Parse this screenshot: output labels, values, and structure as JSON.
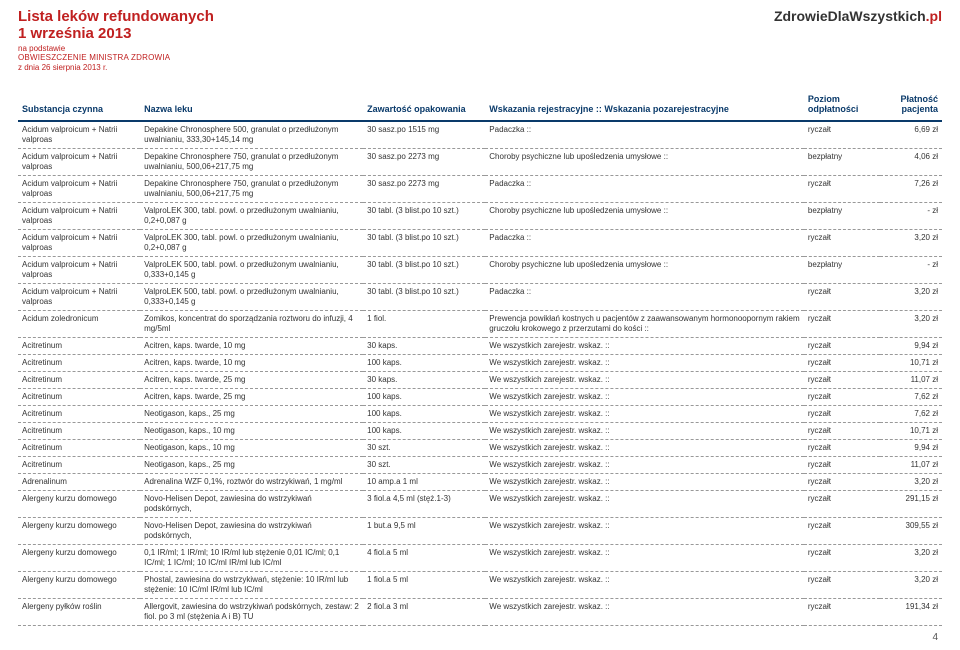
{
  "header": {
    "title1": "Lista leków refundowanych",
    "title2": "1 września 2013",
    "sub1": "na podstawie",
    "sub2": "OBWIESZCZENIE MINISTRA ZDROWIA",
    "sub3": "z dnia 26 sierpnia 2013 r.",
    "brand_main": "ZdrowieDlaWszystkich",
    "brand_suffix": ".pl"
  },
  "columns": {
    "sub": "Substancja czynna",
    "nazwa": "Nazwa leku",
    "zaw": "Zawartość opakowania",
    "wsk": "Wskazania rejestracyjne :: Wskazania pozarejestracyjne",
    "poz": "Poziom odpłatności",
    "plat": "Płatność pacjenta"
  },
  "rows": [
    {
      "sub": "Acidum valproicum + Natrii valproas",
      "nazwa": "Depakine Chronosphere 500, granulat o przedłużonym uwalnianiu, 333,30+145,14 mg",
      "zaw": "30 sasz.po 1515 mg",
      "wsk": "Padaczka ::",
      "poz": "ryczałt",
      "plat": "6,69 zł"
    },
    {
      "sub": "Acidum valproicum + Natrii valproas",
      "nazwa": "Depakine Chronosphere 750, granulat o przedłużonym uwalnianiu, 500,06+217,75 mg",
      "zaw": "30 sasz.po 2273 mg",
      "wsk": "Choroby psychiczne lub upośledzenia umysłowe ::",
      "poz": "bezpłatny",
      "plat": "4,06 zł"
    },
    {
      "sub": "Acidum valproicum + Natrii valproas",
      "nazwa": "Depakine Chronosphere 750, granulat o przedłużonym uwalnianiu, 500,06+217,75 mg",
      "zaw": "30 sasz.po 2273 mg",
      "wsk": "Padaczka ::",
      "poz": "ryczałt",
      "plat": "7,26 zł"
    },
    {
      "sub": "Acidum valproicum + Natrii valproas",
      "nazwa": "ValproLEK 300, tabl. powl. o przedłużonym uwalnianiu, 0,2+0,087 g",
      "zaw": "30 tabl. (3 blist.po 10 szt.)",
      "wsk": "Choroby psychiczne lub upośledzenia umysłowe ::",
      "poz": "bezpłatny",
      "plat": "-   zł"
    },
    {
      "sub": "Acidum valproicum + Natrii valproas",
      "nazwa": "ValproLEK 300, tabl. powl. o przedłużonym uwalnianiu, 0,2+0,087 g",
      "zaw": "30 tabl. (3 blist.po 10 szt.)",
      "wsk": "Padaczka ::",
      "poz": "ryczałt",
      "plat": "3,20 zł"
    },
    {
      "sub": "Acidum valproicum + Natrii valproas",
      "nazwa": "ValproLEK 500, tabl. powl. o przedłużonym uwalnianiu, 0,333+0,145 g",
      "zaw": "30 tabl. (3 blist.po 10 szt.)",
      "wsk": "Choroby psychiczne lub upośledzenia umysłowe ::",
      "poz": "bezpłatny",
      "plat": "-   zł"
    },
    {
      "sub": "Acidum valproicum + Natrii valproas",
      "nazwa": "ValproLEK 500, tabl. powl. o przedłużonym uwalnianiu, 0,333+0,145 g",
      "zaw": "30 tabl. (3 blist.po 10 szt.)",
      "wsk": "Padaczka ::",
      "poz": "ryczałt",
      "plat": "3,20 zł"
    },
    {
      "sub": "Acidum zoledronicum",
      "nazwa": "Zomikos, koncentrat do sporządzania roztworu do infuzji, 4 mg/5ml",
      "zaw": "1 fiol.",
      "wsk": "Prewencja powikłań kostnych u pacjentów z zaawansowanym hormonoopornym rakiem gruczołu krokowego z przerzutami do kości ::",
      "poz": "ryczałt",
      "plat": "3,20 zł"
    },
    {
      "sub": "Acitretinum",
      "nazwa": "Acitren, kaps. twarde, 10 mg",
      "zaw": "30 kaps.",
      "wsk": "We wszystkich zarejestr. wskaz. ::",
      "poz": "ryczałt",
      "plat": "9,94 zł"
    },
    {
      "sub": "Acitretinum",
      "nazwa": "Acitren, kaps. twarde, 10 mg",
      "zaw": "100 kaps.",
      "wsk": "We wszystkich zarejestr. wskaz. ::",
      "poz": "ryczałt",
      "plat": "10,71 zł"
    },
    {
      "sub": "Acitretinum",
      "nazwa": "Acitren, kaps. twarde, 25 mg",
      "zaw": "30 kaps.",
      "wsk": "We wszystkich zarejestr. wskaz. ::",
      "poz": "ryczałt",
      "plat": "11,07 zł"
    },
    {
      "sub": "Acitretinum",
      "nazwa": "Acitren, kaps. twarde, 25 mg",
      "zaw": "100 kaps.",
      "wsk": "We wszystkich zarejestr. wskaz. ::",
      "poz": "ryczałt",
      "plat": "7,62 zł"
    },
    {
      "sub": "Acitretinum",
      "nazwa": "Neotigason, kaps., 25 mg",
      "zaw": "100 kaps.",
      "wsk": "We wszystkich zarejestr. wskaz. ::",
      "poz": "ryczałt",
      "plat": "7,62 zł"
    },
    {
      "sub": "Acitretinum",
      "nazwa": "Neotigason, kaps., 10 mg",
      "zaw": "100 kaps.",
      "wsk": "We wszystkich zarejestr. wskaz. ::",
      "poz": "ryczałt",
      "plat": "10,71 zł"
    },
    {
      "sub": "Acitretinum",
      "nazwa": "Neotigason, kaps., 10 mg",
      "zaw": "30 szt.",
      "wsk": "We wszystkich zarejestr. wskaz. ::",
      "poz": "ryczałt",
      "plat": "9,94 zł"
    },
    {
      "sub": "Acitretinum",
      "nazwa": "Neotigason, kaps., 25 mg",
      "zaw": "30 szt.",
      "wsk": "We wszystkich zarejestr. wskaz. ::",
      "poz": "ryczałt",
      "plat": "11,07 zł"
    },
    {
      "sub": "Adrenalinum",
      "nazwa": "Adrenalina WZF 0,1%, roztwór do wstrzykiwań, 1 mg/ml",
      "zaw": "10 amp.a 1 ml",
      "wsk": "We wszystkich zarejestr. wskaz. ::",
      "poz": "ryczałt",
      "plat": "3,20 zł"
    },
    {
      "sub": "Alergeny kurzu domowego",
      "nazwa": "Novo-Helisen Depot, zawiesina do wstrzykiwań podskórnych,",
      "zaw": "3 fiol.a 4,5 ml (stęż.1-3)",
      "wsk": "We wszystkich zarejestr. wskaz. ::",
      "poz": "ryczałt",
      "plat": "291,15 zł"
    },
    {
      "sub": "Alergeny kurzu domowego",
      "nazwa": "Novo-Helisen Depot, zawiesina do wstrzykiwań podskórnych,",
      "zaw": "1 but.a 9,5 ml",
      "wsk": "We wszystkich zarejestr. wskaz. ::",
      "poz": "ryczałt",
      "plat": "309,55 zł"
    },
    {
      "sub": "Alergeny kurzu domowego",
      "nazwa": "0,1 IR/ml; 1 IR/ml; 10 IR/ml lub stężenie 0,01 IC/ml; 0,1 IC/ml; 1 IC/ml; 10 IC/ml IR/ml lub IC/ml",
      "zaw": "4 fiol.a 5 ml",
      "wsk": "We wszystkich zarejestr. wskaz. ::",
      "poz": "ryczałt",
      "plat": "3,20 zł"
    },
    {
      "sub": "Alergeny kurzu domowego",
      "nazwa": "Phostal, zawiesina do wstrzykiwań, stężenie: 10 IR/ml lub stężenie: 10 IC/ml IR/ml lub IC/ml",
      "zaw": "1 fiol.a 5 ml",
      "wsk": "We wszystkich zarejestr. wskaz. ::",
      "poz": "ryczałt",
      "plat": "3,20 zł"
    },
    {
      "sub": "Alergeny pyłków roślin",
      "nazwa": "Allergovit, zawiesina do wstrzykiwań podskórnych, zestaw: 2 fiol. po 3 ml (stężenia A i B) TU",
      "zaw": "2 fiol.a 3 ml",
      "wsk": "We wszystkich zarejestr. wskaz. ::",
      "poz": "ryczałt",
      "plat": "191,34 zł"
    }
  ],
  "pageNumber": "4"
}
